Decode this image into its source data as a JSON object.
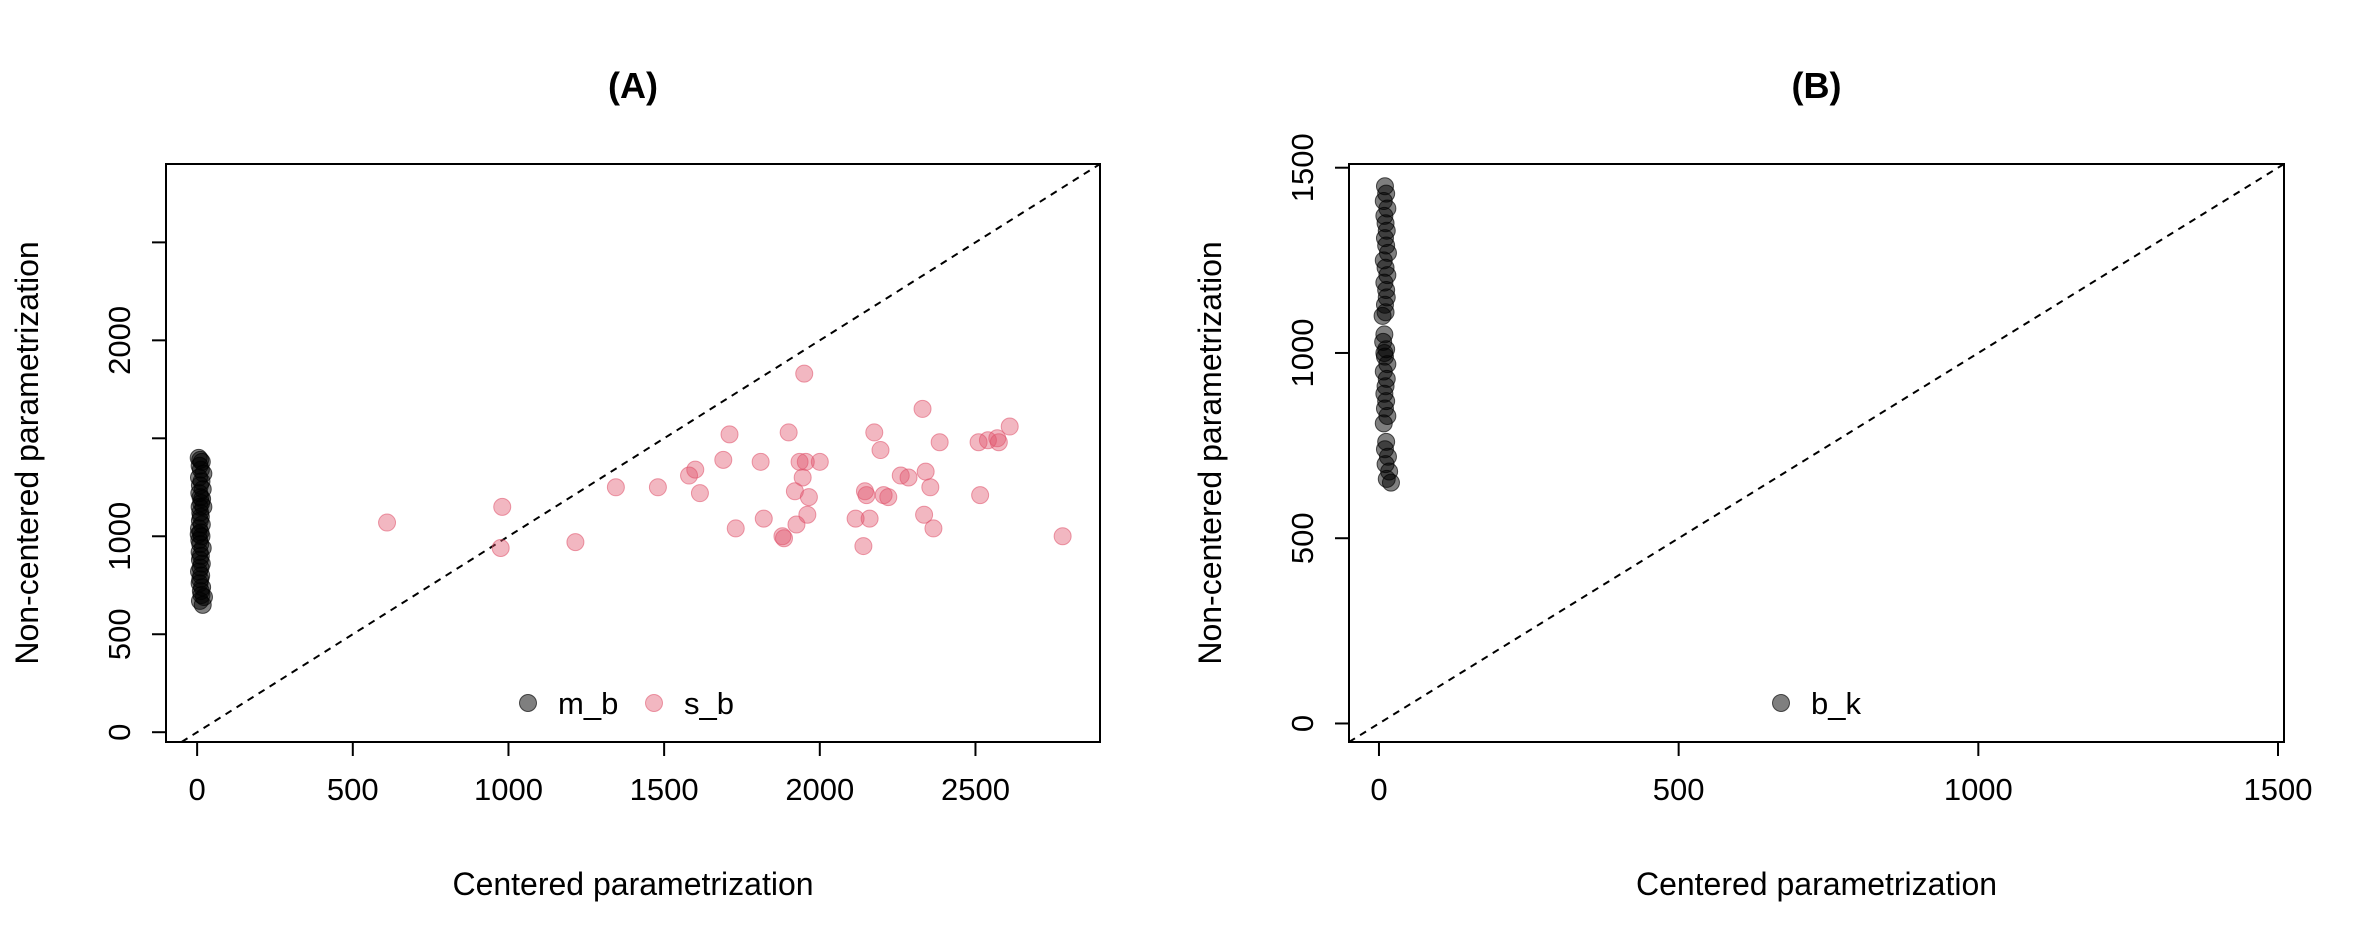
{
  "chart_data": [
    {
      "type": "scatter",
      "title": "(A)",
      "xlabel": "Centered parametrization",
      "ylabel": "Non-centered parametrization",
      "xlim": [
        -100,
        2900
      ],
      "ylim": [
        -50,
        2900
      ],
      "xticks": [
        "0",
        "500",
        "1000",
        "1500",
        "2000",
        "2500"
      ],
      "yticks": [
        "0",
        "500",
        "1000",
        "1500",
        "2000",
        "2500"
      ],
      "ytick_labels": [
        "0",
        "500",
        "1000",
        "",
        "2000",
        ""
      ],
      "diagonal": true,
      "grid": false,
      "legend_position": "bottom-center",
      "legend": [
        "m_b",
        "s_b"
      ],
      "series": [
        {
          "name": "m_b",
          "color": "#000000",
          "points": [
            [
              5,
              1400
            ],
            [
              10,
              1390
            ],
            [
              15,
              1380
            ],
            [
              8,
              1360
            ],
            [
              12,
              1340
            ],
            [
              20,
              1320
            ],
            [
              6,
              1300
            ],
            [
              14,
              1280
            ],
            [
              9,
              1260
            ],
            [
              18,
              1240
            ],
            [
              7,
              1220
            ],
            [
              11,
              1200
            ],
            [
              16,
              1190
            ],
            [
              13,
              1170
            ],
            [
              8,
              1150
            ],
            [
              10,
              1120
            ],
            [
              12,
              1100
            ],
            [
              9,
              1080
            ],
            [
              15,
              1060
            ],
            [
              6,
              1040
            ],
            [
              11,
              1020
            ],
            [
              14,
              1000
            ],
            [
              7,
              980
            ],
            [
              10,
              960
            ],
            [
              18,
              940
            ],
            [
              8,
              920
            ],
            [
              12,
              900
            ],
            [
              9,
              880
            ],
            [
              15,
              860
            ],
            [
              11,
              840
            ],
            [
              6,
              820
            ],
            [
              13,
              800
            ],
            [
              10,
              780
            ],
            [
              8,
              760
            ],
            [
              16,
              740
            ],
            [
              12,
              720
            ],
            [
              14,
              700
            ],
            [
              22,
              690
            ],
            [
              9,
              670
            ],
            [
              18,
              650
            ],
            [
              20,
              1150
            ],
            [
              5,
              1010
            ]
          ]
        },
        {
          "name": "s_b",
          "color": "#DF536B",
          "points": [
            [
              610,
              1070
            ],
            [
              980,
              1150
            ],
            [
              975,
              940
            ],
            [
              1215,
              970
            ],
            [
              1345,
              1250
            ],
            [
              1480,
              1250
            ],
            [
              1580,
              1310
            ],
            [
              1600,
              1340
            ],
            [
              1615,
              1220
            ],
            [
              1690,
              1390
            ],
            [
              1710,
              1520
            ],
            [
              1730,
              1040
            ],
            [
              1810,
              1380
            ],
            [
              1820,
              1090
            ],
            [
              1880,
              1000
            ],
            [
              1885,
              990
            ],
            [
              1900,
              1530
            ],
            [
              1920,
              1230
            ],
            [
              1925,
              1060
            ],
            [
              1935,
              1380
            ],
            [
              1945,
              1300
            ],
            [
              1950,
              1830
            ],
            [
              1955,
              1380
            ],
            [
              1960,
              1110
            ],
            [
              1965,
              1200
            ],
            [
              2000,
              1380
            ],
            [
              2115,
              1090
            ],
            [
              2140,
              950
            ],
            [
              2145,
              1230
            ],
            [
              2150,
              1210
            ],
            [
              2160,
              1090
            ],
            [
              2175,
              1530
            ],
            [
              2195,
              1440
            ],
            [
              2205,
              1210
            ],
            [
              2220,
              1200
            ],
            [
              2260,
              1310
            ],
            [
              2285,
              1300
            ],
            [
              2330,
              1650
            ],
            [
              2335,
              1110
            ],
            [
              2340,
              1330
            ],
            [
              2355,
              1250
            ],
            [
              2365,
              1040
            ],
            [
              2385,
              1480
            ],
            [
              2510,
              1480
            ],
            [
              2515,
              1210
            ],
            [
              2540,
              1490
            ],
            [
              2570,
              1500
            ],
            [
              2575,
              1480
            ],
            [
              2610,
              1560
            ],
            [
              2780,
              1000
            ]
          ]
        }
      ]
    },
    {
      "type": "scatter",
      "title": "(B)",
      "xlabel": "Centered parametrization",
      "ylabel": "Non-centered parametrization",
      "xlim": [
        -50,
        1510
      ],
      "ylim": [
        -50,
        1510
      ],
      "xticks": [
        "0",
        "500",
        "1000",
        "1500"
      ],
      "yticks": [
        "0",
        "500",
        "1000",
        "1500"
      ],
      "diagonal": true,
      "grid": false,
      "legend_position": "bottom-center",
      "legend": [
        "b_k"
      ],
      "series": [
        {
          "name": "b_k",
          "color": "#000000",
          "points": [
            [
              10,
              1450
            ],
            [
              12,
              1430
            ],
            [
              8,
              1410
            ],
            [
              14,
              1390
            ],
            [
              9,
              1370
            ],
            [
              11,
              1350
            ],
            [
              13,
              1330
            ],
            [
              10,
              1310
            ],
            [
              12,
              1290
            ],
            [
              15,
              1270
            ],
            [
              8,
              1250
            ],
            [
              11,
              1230
            ],
            [
              14,
              1210
            ],
            [
              9,
              1190
            ],
            [
              12,
              1170
            ],
            [
              13,
              1150
            ],
            [
              10,
              1130
            ],
            [
              11,
              1110
            ],
            [
              6,
              1100
            ],
            [
              9,
              1050
            ],
            [
              7,
              1030
            ],
            [
              12,
              1010
            ],
            [
              10,
              990
            ],
            [
              14,
              970
            ],
            [
              8,
              950
            ],
            [
              13,
              930
            ],
            [
              11,
              910
            ],
            [
              9,
              890
            ],
            [
              12,
              870
            ],
            [
              10,
              850
            ],
            [
              14,
              830
            ],
            [
              8,
              810
            ],
            [
              12,
              760
            ],
            [
              10,
              740
            ],
            [
              15,
              720
            ],
            [
              11,
              700
            ],
            [
              17,
              680
            ],
            [
              13,
              660
            ],
            [
              20,
              650
            ],
            [
              9,
              1000
            ]
          ]
        }
      ]
    }
  ]
}
